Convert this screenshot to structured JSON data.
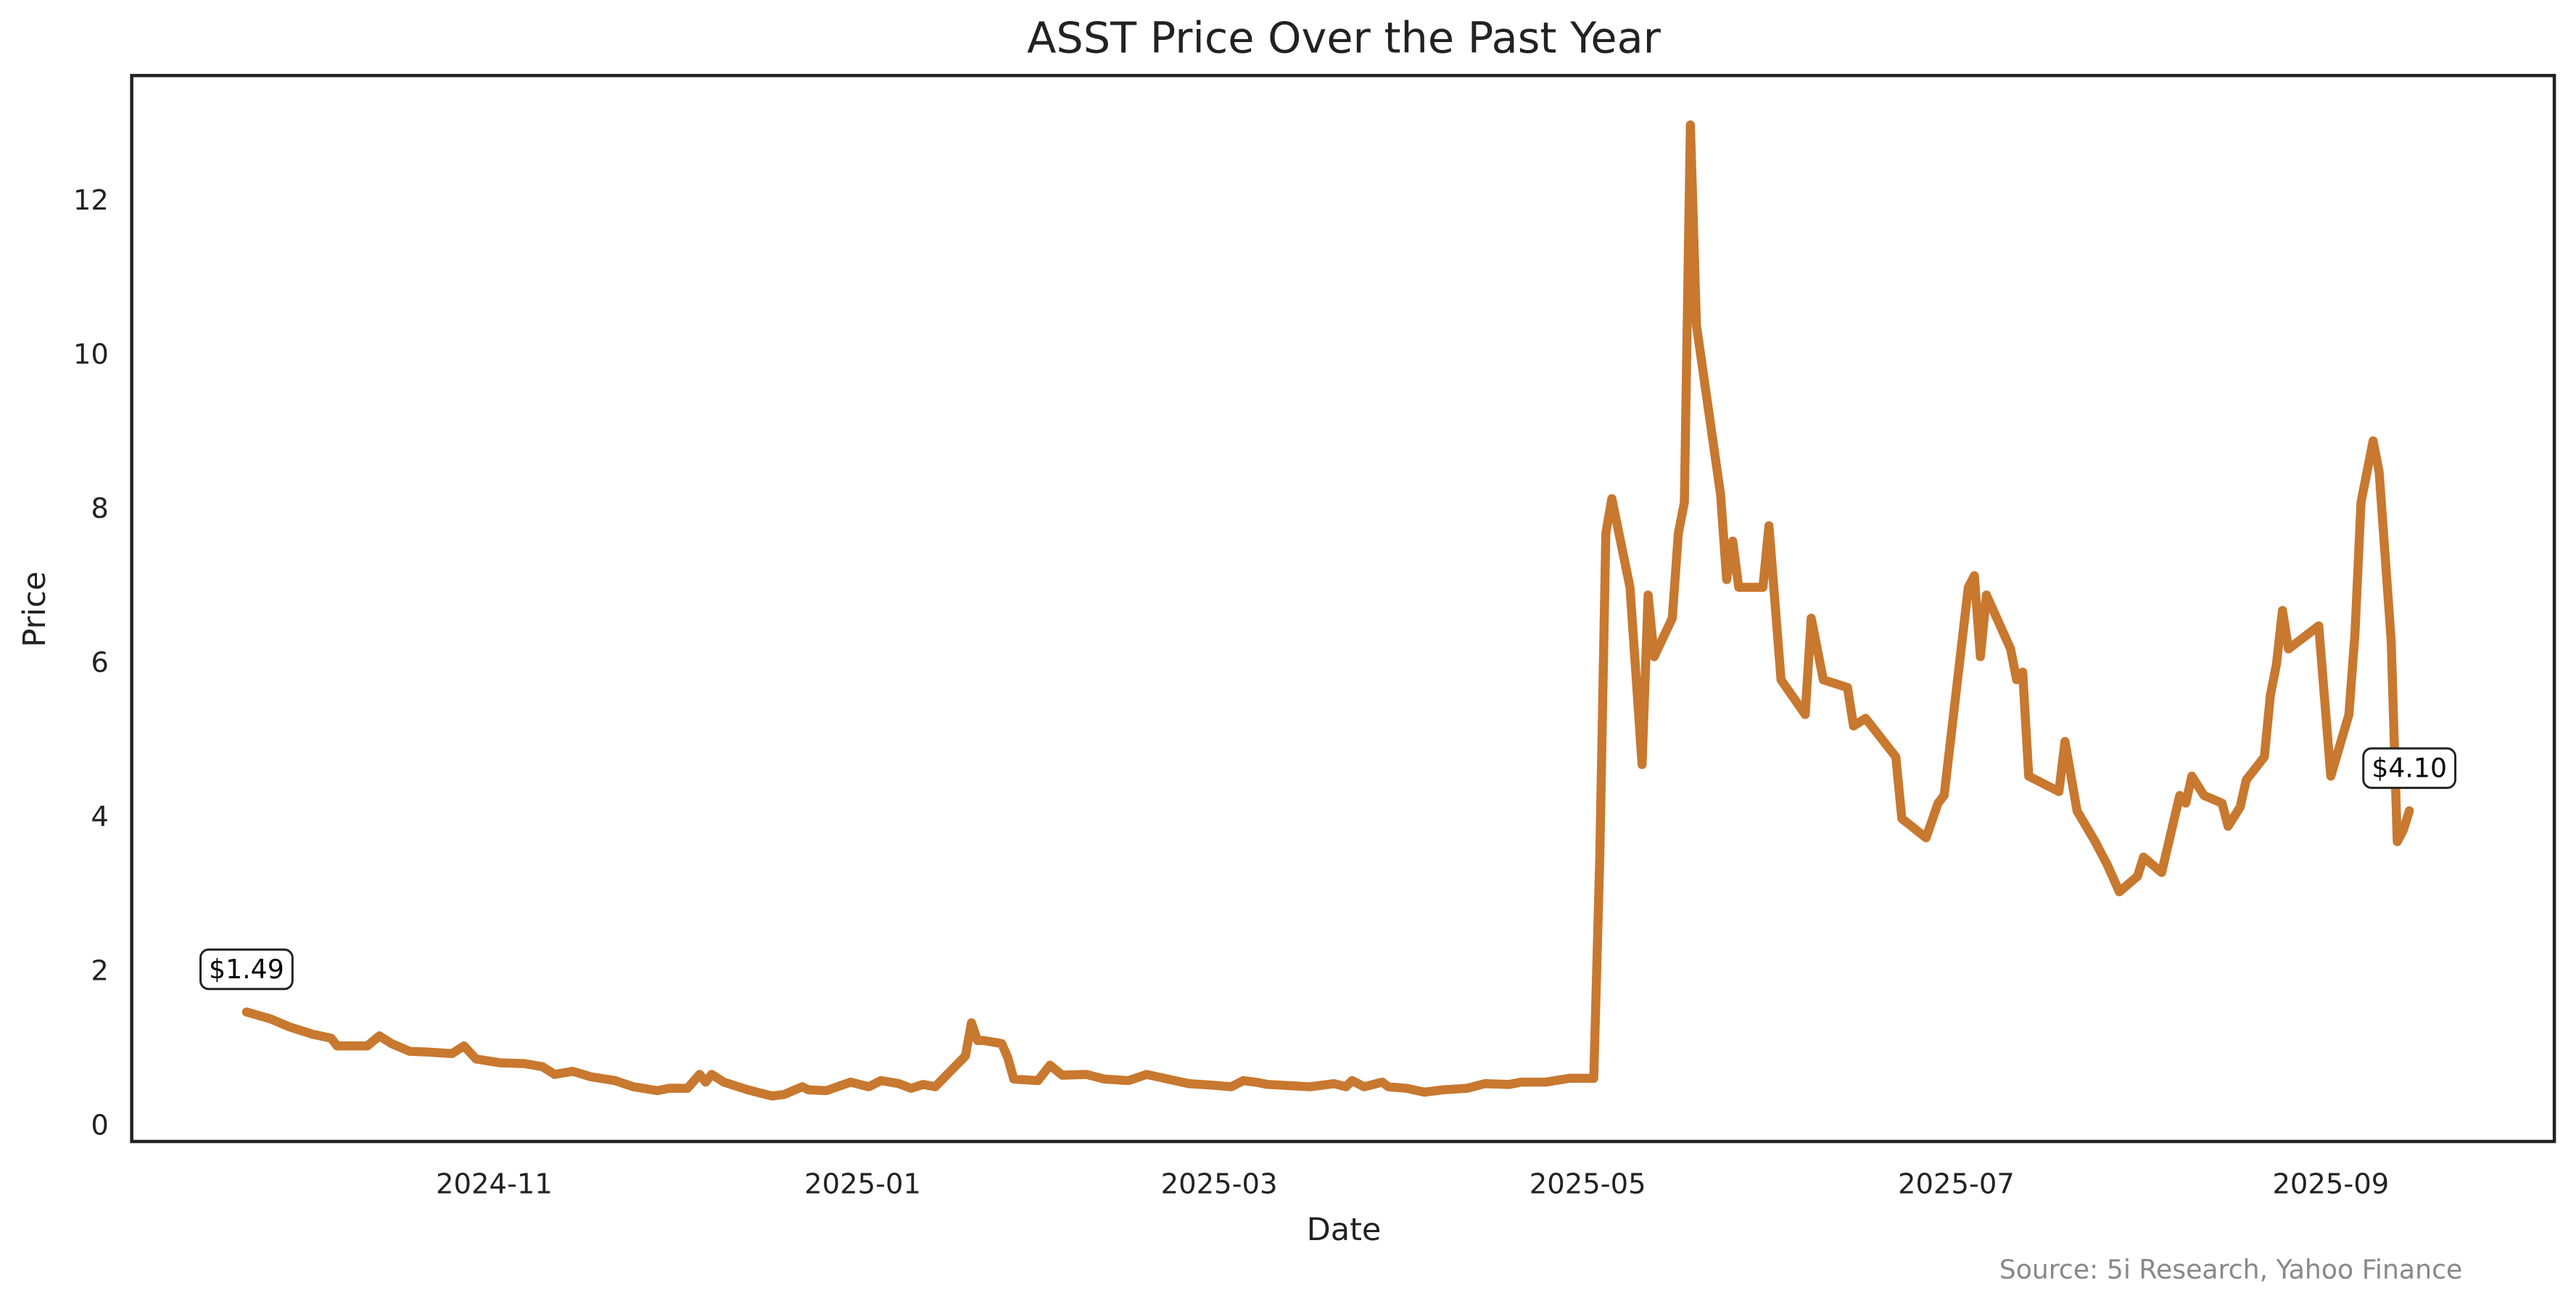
{
  "chart_data": {
    "type": "line",
    "title": "ASST Price Over the Past Year",
    "xlabel": "Date",
    "ylabel": "Price",
    "source": "Source: 5i Research, Yahoo Finance",
    "annotations": [
      "$1.49",
      "$4.10"
    ],
    "color": "#c8782f",
    "x": [
      "2024-09-21",
      "2024-09-25",
      "2024-09-28",
      "2024-10-02",
      "2024-10-05",
      "2024-10-06",
      "2024-10-09",
      "2024-10-11",
      "2024-10-13",
      "2024-10-15",
      "2024-10-18",
      "2024-10-21",
      "2024-10-25",
      "2024-10-27",
      "2024-10-29",
      "2024-11-02",
      "2024-11-06",
      "2024-11-09",
      "2024-11-11",
      "2024-11-14",
      "2024-11-17",
      "2024-11-21",
      "2024-11-24",
      "2024-11-28",
      "2024-11-30",
      "2024-12-03",
      "2024-12-05",
      "2024-12-06",
      "2024-12-07",
      "2024-12-09",
      "2024-12-13",
      "2024-12-17",
      "2024-12-19",
      "2024-12-22",
      "2024-12-23",
      "2024-12-26",
      "2024-12-30",
      "2025-01-02",
      "2025-01-04",
      "2025-01-07",
      "2025-01-09",
      "2025-01-11",
      "2025-01-13",
      "2025-01-18",
      "2025-01-19",
      "2025-01-20",
      "2025-01-21",
      "2025-01-24",
      "2025-01-25",
      "2025-01-26",
      "2025-01-30",
      "2025-02-01",
      "2025-02-03",
      "2025-02-07",
      "2025-02-10",
      "2025-02-14",
      "2025-02-17",
      "2025-02-21",
      "2025-02-24",
      "2025-02-28",
      "2025-03-03",
      "2025-03-05",
      "2025-03-07",
      "2025-03-09",
      "2025-03-16",
      "2025-03-20",
      "2025-03-22",
      "2025-03-23",
      "2025-03-25",
      "2025-03-28",
      "2025-03-29",
      "2025-04-01",
      "2025-04-04",
      "2025-04-07",
      "2025-04-11",
      "2025-04-14",
      "2025-04-18",
      "2025-04-20",
      "2025-04-24",
      "2025-04-28",
      "2025-05-01",
      "2025-05-02",
      "2025-05-03",
      "2025-05-04",
      "2025-05-05",
      "2025-05-08",
      "2025-05-10",
      "2025-05-11",
      "2025-05-12",
      "2025-05-15",
      "2025-05-16",
      "2025-05-17",
      "2025-05-18",
      "2025-05-19",
      "2025-05-23",
      "2025-05-24",
      "2025-05-25",
      "2025-05-26",
      "2025-05-30",
      "2025-05-31",
      "2025-06-02",
      "2025-06-06",
      "2025-06-07",
      "2025-06-09",
      "2025-06-13",
      "2025-06-14",
      "2025-06-16",
      "2025-06-21",
      "2025-06-22",
      "2025-06-26",
      "2025-06-28",
      "2025-06-29",
      "2025-07-03",
      "2025-07-04",
      "2025-07-05",
      "2025-07-06",
      "2025-07-10",
      "2025-07-11",
      "2025-07-12",
      "2025-07-13",
      "2025-07-18",
      "2025-07-19",
      "2025-07-21",
      "2025-07-24",
      "2025-07-26",
      "2025-07-28",
      "2025-07-31",
      "2025-08-01",
      "2025-08-04",
      "2025-08-07",
      "2025-08-08",
      "2025-08-09",
      "2025-08-11",
      "2025-08-14",
      "2025-08-15",
      "2025-08-17",
      "2025-08-18",
      "2025-08-21",
      "2025-08-22",
      "2025-08-23",
      "2025-08-24",
      "2025-08-25",
      "2025-08-30",
      "2025-09-01",
      "2025-09-04",
      "2025-09-05",
      "2025-09-06",
      "2025-09-08",
      "2025-09-09",
      "2025-09-11",
      "2025-09-12",
      "2025-09-13",
      "2025-09-14"
    ],
    "values": [
      1.49,
      1.4,
      1.3,
      1.2,
      1.15,
      1.05,
      1.05,
      1.05,
      1.18,
      1.08,
      0.98,
      0.97,
      0.95,
      1.05,
      0.88,
      0.83,
      0.82,
      0.78,
      0.68,
      0.72,
      0.65,
      0.6,
      0.52,
      0.47,
      0.5,
      0.5,
      0.68,
      0.58,
      0.68,
      0.58,
      0.48,
      0.4,
      0.42,
      0.52,
      0.48,
      0.47,
      0.58,
      0.52,
      0.6,
      0.56,
      0.5,
      0.55,
      0.52,
      0.92,
      1.35,
      1.12,
      1.12,
      1.08,
      0.9,
      0.62,
      0.6,
      0.8,
      0.67,
      0.68,
      0.62,
      0.6,
      0.68,
      0.61,
      0.56,
      0.54,
      0.52,
      0.6,
      0.58,
      0.55,
      0.52,
      0.56,
      0.52,
      0.6,
      0.52,
      0.58,
      0.52,
      0.5,
      0.45,
      0.48,
      0.5,
      0.56,
      0.55,
      0.58,
      0.58,
      0.63,
      0.63,
      0.63,
      3.5,
      7.7,
      8.15,
      7.0,
      4.7,
      6.9,
      6.1,
      6.6,
      7.7,
      8.1,
      13.0,
      10.4,
      8.2,
      7.1,
      7.6,
      7.0,
      7.0,
      7.8,
      5.8,
      5.35,
      6.6,
      5.8,
      5.7,
      5.2,
      5.3,
      4.8,
      4.0,
      3.75,
      4.2,
      4.3,
      7.0,
      7.15,
      6.1,
      6.9,
      6.2,
      5.8,
      5.9,
      4.55,
      4.35,
      5.0,
      4.1,
      3.7,
      3.4,
      3.05,
      3.25,
      3.5,
      3.3,
      4.3,
      4.2,
      4.55,
      4.3,
      4.2,
      3.9,
      4.15,
      4.5,
      4.8,
      5.6,
      6.0,
      6.7,
      6.2,
      6.5,
      4.55,
      5.35,
      6.4,
      8.1,
      8.9,
      8.5,
      6.3,
      3.7,
      3.85,
      4.1
    ],
    "xlim": [
      "2024-09-02",
      "2025-10-08"
    ],
    "xticks": [
      {
        "value": "2024-11-01",
        "label": "2024-11"
      },
      {
        "value": "2025-01-01",
        "label": "2025-01"
      },
      {
        "value": "2025-03-01",
        "label": "2025-03"
      },
      {
        "value": "2025-05-01",
        "label": "2025-05"
      },
      {
        "value": "2025-07-01",
        "label": "2025-07"
      },
      {
        "value": "2025-09-01",
        "label": "2025-09"
      }
    ],
    "ylim": [
      -0.19,
      13.64
    ],
    "yticks": [
      0,
      2,
      4,
      6,
      8,
      10,
      12
    ],
    "grid": false
  }
}
